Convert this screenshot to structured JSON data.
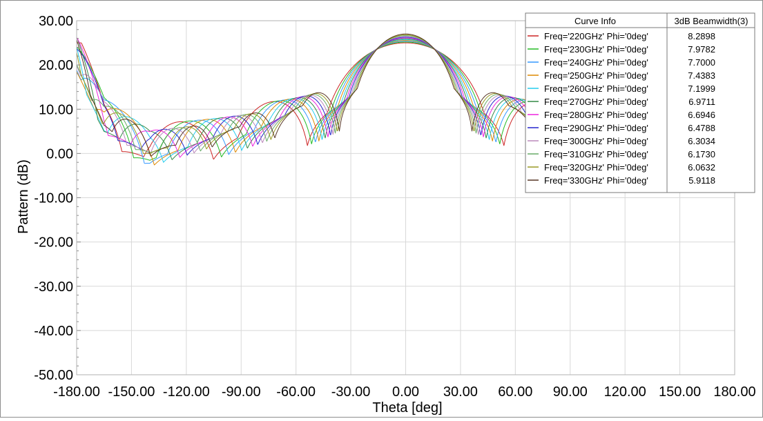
{
  "chart_data": {
    "type": "line",
    "xlabel": "Theta [deg]",
    "ylabel": "Pattern (dB)",
    "xlim": [
      -180,
      180
    ],
    "ylim": [
      -50,
      30
    ],
    "x_ticks": [
      "-180.00",
      "-150.00",
      "-120.00",
      "-90.00",
      "-60.00",
      "-30.00",
      "0.00",
      "30.00",
      "60.00",
      "90.00",
      "120.00",
      "150.00",
      "180.00"
    ],
    "y_ticks": [
      "30.00",
      "20.00",
      "10.00",
      "0.00",
      "-10.00",
      "-20.00",
      "-30.00",
      "-40.00",
      "-50.00"
    ],
    "grid": true,
    "legend": {
      "placement": "top-right",
      "header_curve": "Curve Info",
      "header_value": "3dB Beamwidth(3)"
    },
    "series": [
      {
        "name": "Freq='220GHz' Phi='0deg'",
        "beamwidth": "8.2898",
        "color": "#cc2222",
        "freq": 220
      },
      {
        "name": "Freq='230GHz' Phi='0deg'",
        "beamwidth": "7.9782",
        "color": "#22bb22",
        "freq": 230
      },
      {
        "name": "Freq='240GHz' Phi='0deg'",
        "beamwidth": "7.7000",
        "color": "#3399ff",
        "freq": 240
      },
      {
        "name": "Freq='250GHz' Phi='0deg'",
        "beamwidth": "7.4383",
        "color": "#dd8800",
        "freq": 250
      },
      {
        "name": "Freq='260GHz' Phi='0deg'",
        "beamwidth": "7.1999",
        "color": "#22ccee",
        "freq": 260
      },
      {
        "name": "Freq='270GHz' Phi='0deg'",
        "beamwidth": "6.9711",
        "color": "#338844",
        "freq": 270
      },
      {
        "name": "Freq='280GHz' Phi='0deg'",
        "beamwidth": "6.6946",
        "color": "#ee22dd",
        "freq": 280
      },
      {
        "name": "Freq='290GHz' Phi='0deg'",
        "beamwidth": "6.4788",
        "color": "#2222cc",
        "freq": 290
      },
      {
        "name": "Freq='300GHz' Phi='0deg'",
        "beamwidth": "6.3034",
        "color": "#bb88bb",
        "freq": 300
      },
      {
        "name": "Freq='310GHz' Phi='0deg'",
        "beamwidth": "6.1730",
        "color": "#66aa66",
        "freq": 310
      },
      {
        "name": "Freq='320GHz' Phi='0deg'",
        "beamwidth": "6.0632",
        "color": "#999922",
        "freq": 320
      },
      {
        "name": "Freq='330GHz' Phi='0deg'",
        "beamwidth": "5.9118",
        "color": "#553322",
        "freq": 330
      }
    ]
  }
}
